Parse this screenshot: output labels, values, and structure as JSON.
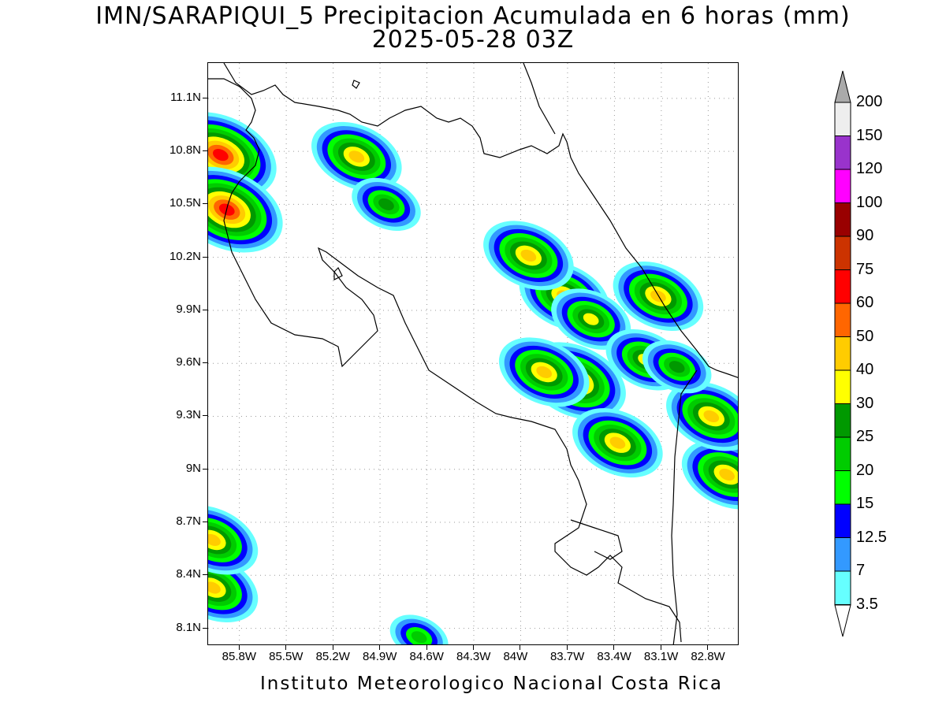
{
  "title_line1": "IMN/SARAPIQUI_5 Precipitacion Acumulada en 6 horas (mm)",
  "title_line2": "2025-05-28 03Z",
  "footer": "Instituto Meteorologico Nacional Costa Rica",
  "map": {
    "lat_labels": [
      "11.1N",
      "10.8N",
      "10.5N",
      "10.2N",
      "9.9N",
      "9.6N",
      "9.3N",
      "9N",
      "8.7N",
      "8.4N",
      "8.1N"
    ],
    "lon_labels": [
      "85.8W",
      "85.5W",
      "85.2W",
      "84.9W",
      "84.6W",
      "84.3W",
      "84W",
      "83.7W",
      "83.4W",
      "83.1W",
      "82.8W"
    ],
    "grid": "dotted"
  },
  "colorbar": {
    "levels": [
      "3.5",
      "7",
      "12.5",
      "15",
      "20",
      "25",
      "30",
      "40",
      "50",
      "60",
      "75",
      "90",
      "100",
      "120",
      "150",
      "200"
    ],
    "colors": [
      "#66ffff",
      "#3399ff",
      "#0000ff",
      "#00ff00",
      "#00cc00",
      "#009900",
      "#ffff00",
      "#ffcc00",
      "#ff6600",
      "#ff0000",
      "#cc3300",
      "#990000",
      "#ff00ff",
      "#9933cc",
      "#eeeeee",
      "#aaaaaa"
    ]
  },
  "chart_data": {
    "type": "heatmap",
    "title": "IMN/SARAPIQUI_5 Precipitacion Acumulada en 6 horas (mm)",
    "subtitle": "2025-05-28 03Z",
    "xlim": [
      -86.0,
      -82.6
    ],
    "ylim": [
      8.0,
      11.3
    ],
    "units": "mm",
    "cells": [
      {
        "lon": -85.92,
        "lat": 10.78,
        "peak": 60
      },
      {
        "lon": -85.88,
        "lat": 10.47,
        "peak": 60
      },
      {
        "lon": -85.05,
        "lat": 10.77,
        "peak": 40
      },
      {
        "lon": -84.86,
        "lat": 10.5,
        "peak": 25
      },
      {
        "lon": -83.65,
        "lat": 9.5,
        "peak": 50
      },
      {
        "lon": -83.85,
        "lat": 9.55,
        "peak": 40
      },
      {
        "lon": -83.72,
        "lat": 9.98,
        "peak": 40
      },
      {
        "lon": -83.12,
        "lat": 9.98,
        "peak": 40
      },
      {
        "lon": -83.95,
        "lat": 10.21,
        "peak": 40
      },
      {
        "lon": -83.38,
        "lat": 9.15,
        "peak": 40
      },
      {
        "lon": -82.68,
        "lat": 8.97,
        "peak": 40
      },
      {
        "lon": -82.78,
        "lat": 9.3,
        "peak": 40
      },
      {
        "lon": -85.97,
        "lat": 8.33,
        "peak": 40
      },
      {
        "lon": -85.97,
        "lat": 8.6,
        "peak": 40
      },
      {
        "lon": -83.55,
        "lat": 9.85,
        "peak": 30
      },
      {
        "lon": -83.2,
        "lat": 9.62,
        "peak": 30
      },
      {
        "lon": -83.0,
        "lat": 9.58,
        "peak": 25
      },
      {
        "lon": -84.65,
        "lat": 8.05,
        "peak": 20
      }
    ]
  }
}
